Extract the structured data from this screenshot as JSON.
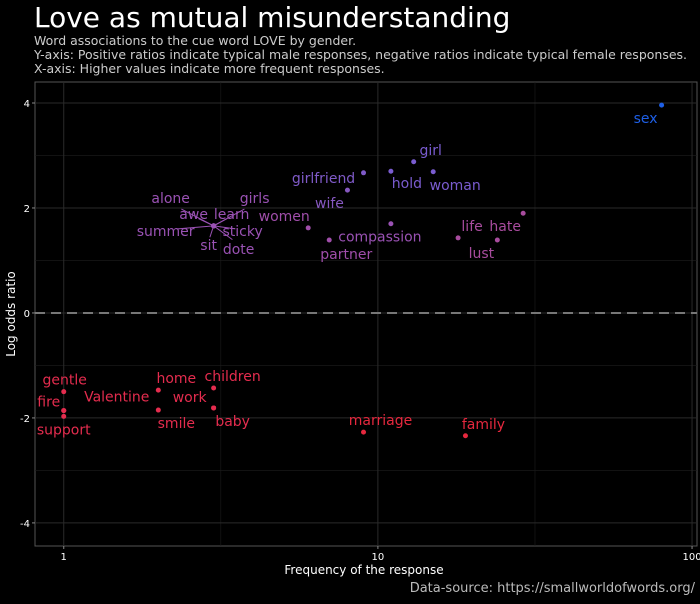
{
  "chart_data": {
    "type": "scatter",
    "title": "Love as mutual misunderstanding",
    "subtitle": [
      "Word associations to the cue word LOVE by gender.",
      "Y-axis: Positive ratios indicate typical male responses, negative ratios indicate typical female responses.",
      "X-axis: Higher values indicate more frequent responses."
    ],
    "x_label": "Frequency of the response",
    "y_label": "Log odds ratio",
    "caption": "Data-source: https://smallworldofwords.org/",
    "labels": [
      "sex",
      "girl",
      "hold",
      "woman",
      "girlfriend",
      "wife",
      "alone",
      "awe",
      "learn",
      "girls",
      "summer",
      "sticky",
      "sit",
      "dote",
      "women",
      "compassion",
      "partner",
      "hate",
      "life",
      "lust",
      "gentle",
      "fire",
      "support",
      "Valentine",
      "home",
      "smile",
      "children",
      "work",
      "baby",
      "marriage",
      "family"
    ],
    "x": [
      80,
      13,
      11,
      15,
      9,
      8,
      3,
      3,
      3,
      3,
      3,
      3,
      3,
      3,
      6,
      11,
      7,
      29,
      18,
      24,
      1,
      1,
      1,
      1,
      2,
      2,
      3,
      3,
      3,
      9,
      19
    ],
    "values": [
      3.96,
      2.88,
      2.7,
      2.69,
      2.67,
      2.34,
      1.66,
      1.66,
      1.66,
      1.66,
      1.66,
      1.66,
      1.66,
      1.66,
      1.62,
      1.7,
      1.39,
      1.9,
      1.43,
      1.39,
      -1.5,
      -1.86,
      -1.97,
      -1.86,
      -1.47,
      -1.85,
      -1.43,
      -1.81,
      -1.81,
      -2.27,
      -2.34
    ],
    "colors": [
      "#1e5fe6",
      "#7a5cd0",
      "#7a5cd0",
      "#7a5cd0",
      "#7f5ac8",
      "#8658c0",
      "#9a52b4",
      "#9a52b4",
      "#9a52b4",
      "#9a52b4",
      "#9a52b4",
      "#9a52b4",
      "#9a52b4",
      "#9a52b4",
      "#a04eaa",
      "#9a52b4",
      "#a04eaa",
      "#a84c9e",
      "#a84c9e",
      "#a84c9e",
      "#e42c4e",
      "#e42c4e",
      "#e42c4e",
      "#e42c4e",
      "#e42c4e",
      "#e42c4e",
      "#e42c4e",
      "#e42c4e",
      "#e42c4e",
      "#e6283e",
      "#e6283e"
    ],
    "xlim": [
      0.81,
      103.7
    ],
    "ylim": [
      -4.44,
      4.4
    ],
    "xticks": [
      1,
      10,
      100
    ],
    "yticks": [
      -4,
      -2,
      0,
      2,
      4
    ],
    "x_log": true,
    "grid": true,
    "reference_line": 0
  }
}
